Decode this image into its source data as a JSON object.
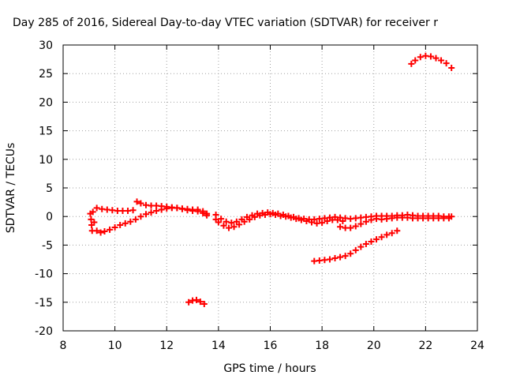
{
  "chart_data": {
    "type": "scatter",
    "title": "Day 285 of 2016, Sidereal Day-to-day VTEC variation (SDTVAR) for receiver r",
    "xlabel": "GPS time / hours",
    "ylabel": "SDTVAR / TECUs",
    "xlim": [
      8,
      24
    ],
    "ylim": [
      -20,
      30
    ],
    "x_ticks": [
      8,
      10,
      12,
      14,
      16,
      18,
      20,
      22,
      24
    ],
    "y_ticks": [
      30,
      25,
      20,
      15,
      10,
      5,
      0,
      -5,
      -10,
      -15,
      -20
    ],
    "grid": true,
    "marker": "plus",
    "colors": {
      "series": "#ff0000",
      "grid": "#a0a0a0",
      "axis": "#000000"
    },
    "series": [
      {
        "points": [
          [
            9.05,
            0.5
          ],
          [
            9.08,
            -0.5
          ],
          [
            9.1,
            -1.5
          ],
          [
            9.12,
            -2.5
          ],
          [
            9.15,
            0.8
          ],
          [
            9.2,
            -1.0
          ],
          [
            9.3,
            -2.5
          ],
          [
            9.45,
            -2.8
          ],
          [
            9.6,
            -2.6
          ],
          [
            9.8,
            -2.3
          ],
          [
            10.0,
            -1.9
          ],
          [
            10.2,
            -1.5
          ],
          [
            10.4,
            -1.2
          ],
          [
            10.6,
            -0.9
          ],
          [
            10.8,
            -0.5
          ],
          [
            11.0,
            0.0
          ],
          [
            11.2,
            0.4
          ],
          [
            11.4,
            0.7
          ],
          [
            11.6,
            1.0
          ],
          [
            11.8,
            1.2
          ],
          [
            12.0,
            1.4
          ],
          [
            12.2,
            1.5
          ],
          [
            12.4,
            1.5
          ],
          [
            12.6,
            1.3
          ],
          [
            12.8,
            1.1
          ],
          [
            13.0,
            1.0
          ],
          [
            13.2,
            0.9
          ],
          [
            13.4,
            0.6
          ],
          [
            13.55,
            0.2
          ],
          [
            9.3,
            1.5
          ],
          [
            9.5,
            1.3
          ],
          [
            9.7,
            1.2
          ],
          [
            9.9,
            1.1
          ],
          [
            10.1,
            1.0
          ],
          [
            10.3,
            1.0
          ],
          [
            10.5,
            1.0
          ],
          [
            10.7,
            1.1
          ],
          [
            10.85,
            2.6
          ],
          [
            11.0,
            2.3
          ],
          [
            11.2,
            2.0
          ],
          [
            11.4,
            1.9
          ],
          [
            11.6,
            1.9
          ],
          [
            11.8,
            1.8
          ],
          [
            12.0,
            1.7
          ],
          [
            12.2,
            1.6
          ],
          [
            12.4,
            1.5
          ],
          [
            12.6,
            1.4
          ],
          [
            12.8,
            1.3
          ],
          [
            13.0,
            1.2
          ],
          [
            13.2,
            1.2
          ],
          [
            13.4,
            0.9
          ],
          [
            13.55,
            0.5
          ],
          [
            12.85,
            -15.0
          ],
          [
            13.0,
            -14.7
          ],
          [
            13.15,
            -14.6
          ],
          [
            13.3,
            -14.9
          ],
          [
            13.45,
            -15.3
          ],
          [
            13.9,
            -0.5
          ],
          [
            14.0,
            -1.0
          ],
          [
            14.2,
            -1.6
          ],
          [
            14.4,
            -2.0
          ],
          [
            14.6,
            -1.8
          ],
          [
            14.8,
            -1.4
          ],
          [
            15.0,
            -0.9
          ],
          [
            15.2,
            -0.5
          ],
          [
            15.4,
            -0.1
          ],
          [
            15.6,
            0.2
          ],
          [
            15.8,
            0.3
          ],
          [
            16.0,
            0.4
          ],
          [
            16.2,
            0.3
          ],
          [
            16.4,
            0.1
          ],
          [
            16.6,
            0.0
          ],
          [
            16.8,
            -0.2
          ],
          [
            17.0,
            -0.4
          ],
          [
            17.2,
            -0.6
          ],
          [
            17.4,
            -0.8
          ],
          [
            17.6,
            -1.0
          ],
          [
            17.8,
            -1.2
          ],
          [
            18.0,
            -1.1
          ],
          [
            18.2,
            -0.8
          ],
          [
            18.4,
            -0.6
          ],
          [
            18.6,
            -0.6
          ],
          [
            18.8,
            -0.8
          ],
          [
            13.9,
            0.3
          ],
          [
            14.1,
            -0.4
          ],
          [
            14.3,
            -0.9
          ],
          [
            14.5,
            -1.1
          ],
          [
            14.7,
            -0.9
          ],
          [
            14.9,
            -0.5
          ],
          [
            15.1,
            -0.1
          ],
          [
            15.3,
            0.2
          ],
          [
            15.5,
            0.5
          ],
          [
            15.7,
            0.6
          ],
          [
            15.9,
            0.7
          ],
          [
            16.1,
            0.6
          ],
          [
            16.3,
            0.5
          ],
          [
            16.5,
            0.3
          ],
          [
            16.7,
            0.1
          ],
          [
            16.9,
            -0.1
          ],
          [
            17.1,
            -0.3
          ],
          [
            17.3,
            -0.4
          ],
          [
            17.5,
            -0.5
          ],
          [
            17.7,
            -0.5
          ],
          [
            17.9,
            -0.4
          ],
          [
            18.1,
            -0.3
          ],
          [
            18.3,
            -0.2
          ],
          [
            18.5,
            -0.1
          ],
          [
            18.7,
            -0.2
          ],
          [
            18.7,
            -1.8
          ],
          [
            18.9,
            -2.0
          ],
          [
            19.1,
            -2.0
          ],
          [
            19.3,
            -1.7
          ],
          [
            19.5,
            -1.3
          ],
          [
            19.7,
            -0.9
          ],
          [
            19.9,
            -0.6
          ],
          [
            20.1,
            -0.4
          ],
          [
            18.9,
            -0.3
          ],
          [
            19.1,
            -0.4
          ],
          [
            19.3,
            -0.3
          ],
          [
            19.5,
            -0.2
          ],
          [
            19.7,
            -0.1
          ],
          [
            19.9,
            0.0
          ],
          [
            20.1,
            0.1
          ],
          [
            20.3,
            0.1
          ],
          [
            20.5,
            0.1
          ],
          [
            20.7,
            0.1
          ],
          [
            20.9,
            0.2
          ],
          [
            21.1,
            0.2
          ],
          [
            21.3,
            0.3
          ],
          [
            21.5,
            0.2
          ],
          [
            21.7,
            0.1
          ],
          [
            21.9,
            0.1
          ],
          [
            22.1,
            0.1
          ],
          [
            22.3,
            0.1
          ],
          [
            22.5,
            0.1
          ],
          [
            22.7,
            0.0
          ],
          [
            22.9,
            0.0
          ],
          [
            23.0,
            0.0
          ],
          [
            20.3,
            -0.5
          ],
          [
            20.5,
            -0.4
          ],
          [
            20.7,
            -0.3
          ],
          [
            20.9,
            -0.2
          ],
          [
            21.1,
            -0.2
          ],
          [
            21.3,
            -0.2
          ],
          [
            21.5,
            -0.3
          ],
          [
            21.7,
            -0.3
          ],
          [
            21.9,
            -0.3
          ],
          [
            22.1,
            -0.3
          ],
          [
            22.3,
            -0.3
          ],
          [
            22.5,
            -0.3
          ],
          [
            22.7,
            -0.3
          ],
          [
            22.9,
            -0.3
          ],
          [
            17.7,
            -7.8
          ],
          [
            17.9,
            -7.7
          ],
          [
            18.1,
            -7.6
          ],
          [
            18.3,
            -7.5
          ],
          [
            18.5,
            -7.3
          ],
          [
            18.7,
            -7.1
          ],
          [
            18.9,
            -6.9
          ],
          [
            19.1,
            -6.5
          ],
          [
            19.3,
            -5.9
          ],
          [
            19.5,
            -5.3
          ],
          [
            19.7,
            -4.8
          ],
          [
            19.9,
            -4.4
          ],
          [
            20.1,
            -4.0
          ],
          [
            20.3,
            -3.6
          ],
          [
            20.5,
            -3.2
          ],
          [
            20.7,
            -2.9
          ],
          [
            20.9,
            -2.5
          ],
          [
            21.45,
            26.7
          ],
          [
            21.6,
            27.3
          ],
          [
            21.8,
            27.9
          ],
          [
            22.0,
            28.1
          ],
          [
            22.2,
            28.0
          ],
          [
            22.4,
            27.7
          ],
          [
            22.6,
            27.3
          ],
          [
            22.8,
            26.8
          ],
          [
            23.0,
            26.0
          ]
        ]
      }
    ]
  }
}
